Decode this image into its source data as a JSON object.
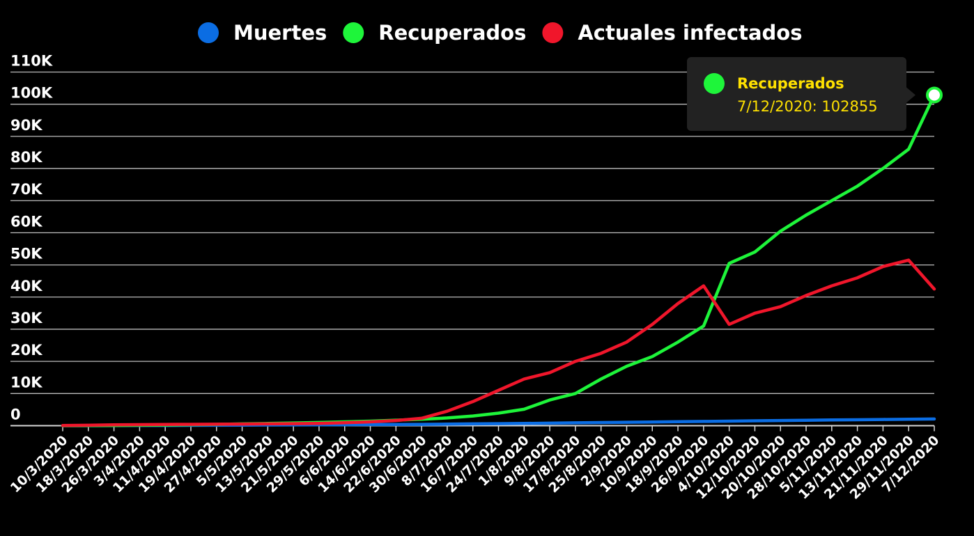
{
  "chart_data": {
    "type": "line",
    "x": [
      "10/3/2020",
      "18/3/2020",
      "26/3/2020",
      "3/4/2020",
      "11/4/2020",
      "19/4/2020",
      "27/4/2020",
      "5/5/2020",
      "13/5/2020",
      "21/5/2020",
      "29/5/2020",
      "6/6/2020",
      "14/6/2020",
      "22/6/2020",
      "30/6/2020",
      "8/7/2020",
      "16/7/2020",
      "24/7/2020",
      "1/8/2020",
      "9/8/2020",
      "17/8/2020",
      "25/8/2020",
      "2/9/2020",
      "10/9/2020",
      "18/9/2020",
      "26/9/2020",
      "4/10/2020",
      "12/10/2020",
      "20/10/2020",
      "28/10/2020",
      "5/11/2020",
      "13/11/2020",
      "21/11/2020",
      "29/11/2020",
      "7/12/2020"
    ],
    "ylim": [
      0,
      110000
    ],
    "yticks": [
      0,
      10000,
      20000,
      30000,
      40000,
      50000,
      60000,
      70000,
      80000,
      90000,
      100000,
      110000
    ],
    "ytick_labels": [
      "0",
      "10K",
      "20K",
      "30K",
      "40K",
      "50K",
      "60K",
      "70K",
      "80K",
      "90K",
      "100K",
      "110K"
    ],
    "grid": true,
    "legend_position": "top-center",
    "series": [
      {
        "name": "Muertes",
        "color": "#0b6de3",
        "values": [
          0,
          5,
          20,
          40,
          70,
          100,
          130,
          170,
          210,
          240,
          270,
          300,
          340,
          380,
          420,
          480,
          560,
          620,
          700,
          790,
          880,
          980,
          1060,
          1150,
          1240,
          1320,
          1400,
          1520,
          1600,
          1690,
          1770,
          1850,
          1930,
          2010,
          2080
        ]
      },
      {
        "name": "Recuperados",
        "color": "#1ef53a",
        "values": [
          0,
          20,
          60,
          120,
          200,
          300,
          420,
          560,
          700,
          850,
          1000,
          1200,
          1400,
          1700,
          2000,
          2400,
          3000,
          3900,
          5100,
          8000,
          10000,
          14500,
          18500,
          21500,
          26000,
          31000,
          50500,
          54000,
          60500,
          65500,
          70000,
          74500,
          80000,
          86000,
          102855
        ]
      },
      {
        "name": "Actuales infectados",
        "color": "#f0162b",
        "values": [
          50,
          120,
          250,
          320,
          380,
          420,
          460,
          500,
          560,
          620,
          720,
          900,
          1200,
          1600,
          2300,
          4500,
          7500,
          11000,
          14500,
          16500,
          20000,
          22500,
          26000,
          31500,
          38000,
          43500,
          31500,
          35000,
          37000,
          40500,
          43500,
          46000,
          49500,
          51500,
          42500
        ]
      }
    ],
    "tooltip": {
      "series": "Recuperados",
      "label": "Recuperados",
      "text": "7/12/2020: 102855",
      "point_index": 34
    }
  }
}
